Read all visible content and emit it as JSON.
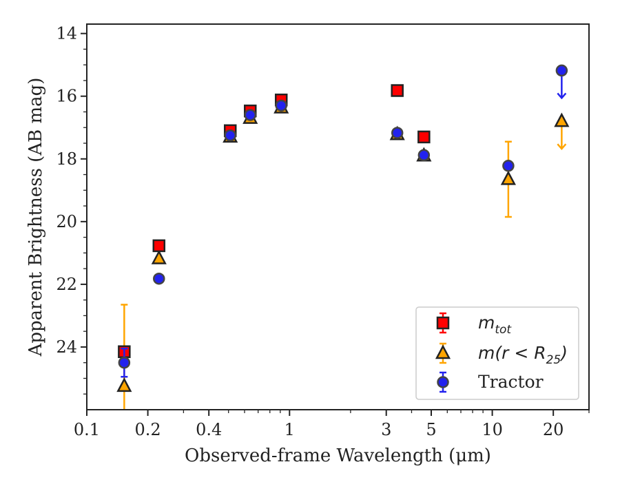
{
  "chart_data": {
    "type": "scatter",
    "xlabel": "Observed-frame Wavelength (μm)",
    "ylabel": "Apparent Brightness (AB mag)",
    "xscale": "log",
    "xlim": [
      0.1,
      30
    ],
    "ylim": [
      26.0,
      13.7
    ],
    "y_inverted": true,
    "x_ticks": [
      0.1,
      0.2,
      0.4,
      1,
      3,
      5,
      10,
      20
    ],
    "x_tick_labels": [
      "0.1",
      "0.2",
      "0.4",
      "1",
      "3",
      "5",
      "10",
      "20"
    ],
    "y_ticks": [
      14,
      16,
      18,
      20,
      22,
      24
    ],
    "y_tick_labels": [
      "14",
      "16",
      "18",
      "20",
      "22",
      "24"
    ],
    "grid": false,
    "legend_position": "bottom-right",
    "series": [
      {
        "name": "m_tot",
        "legend_label": {
          "main": "m",
          "sub": "tot"
        },
        "marker": "square",
        "color": "#ff0000",
        "edge_color": "#222222",
        "points": [
          {
            "x": 0.153,
            "y": 24.15,
            "yerr": 0.1
          },
          {
            "x": 0.227,
            "y": 20.77,
            "yerr": 0.05
          },
          {
            "x": 0.51,
            "y": 17.1,
            "yerr": 0.05
          },
          {
            "x": 0.64,
            "y": 16.47,
            "yerr": 0.05
          },
          {
            "x": 0.91,
            "y": 16.12,
            "yerr": 0.05
          },
          {
            "x": 3.4,
            "y": 15.82,
            "yerr": 0.05
          },
          {
            "x": 4.6,
            "y": 17.3,
            "yerr": 0.05
          }
        ]
      },
      {
        "name": "m(r < R25)",
        "legend_label": {
          "main": "m(r < R",
          "sub": "25",
          "tail": ")"
        },
        "marker": "triangle",
        "color": "#ffa500",
        "edge_color": "#222222",
        "points": [
          {
            "x": 0.153,
            "y": 25.25,
            "yerr_up": 2.6,
            "yerr_down": 1.0
          },
          {
            "x": 0.227,
            "y": 21.18,
            "yerr": 0.05
          },
          {
            "x": 0.51,
            "y": 17.3,
            "yerr": 0.05
          },
          {
            "x": 0.64,
            "y": 16.7,
            "yerr": 0.05
          },
          {
            "x": 0.91,
            "y": 16.37,
            "yerr": 0.05
          },
          {
            "x": 3.4,
            "y": 17.22,
            "yerr": 0.05
          },
          {
            "x": 4.6,
            "y": 17.9,
            "yerr": 0.05
          },
          {
            "x": 12.0,
            "y": 18.65,
            "yerr": 1.2
          },
          {
            "x": 22.0,
            "y": 16.8,
            "upper_limit": true
          }
        ]
      },
      {
        "name": "Tractor",
        "marker": "circle",
        "color": "#2222ee",
        "edge_color": "#444444",
        "points": [
          {
            "x": 0.153,
            "y": 24.5,
            "yerr": 0.45
          },
          {
            "x": 0.227,
            "y": 21.82,
            "yerr": 0.05
          },
          {
            "x": 0.51,
            "y": 17.25,
            "yerr": 0.05
          },
          {
            "x": 0.64,
            "y": 16.6,
            "yerr": 0.05
          },
          {
            "x": 0.91,
            "y": 16.3,
            "yerr": 0.05
          },
          {
            "x": 3.4,
            "y": 17.17,
            "yerr": 0.05
          },
          {
            "x": 4.6,
            "y": 17.88,
            "yerr": 0.05
          },
          {
            "x": 12.0,
            "y": 18.22,
            "yerr": 0.05
          },
          {
            "x": 22.0,
            "y": 15.18,
            "upper_limit": true
          }
        ]
      }
    ]
  }
}
